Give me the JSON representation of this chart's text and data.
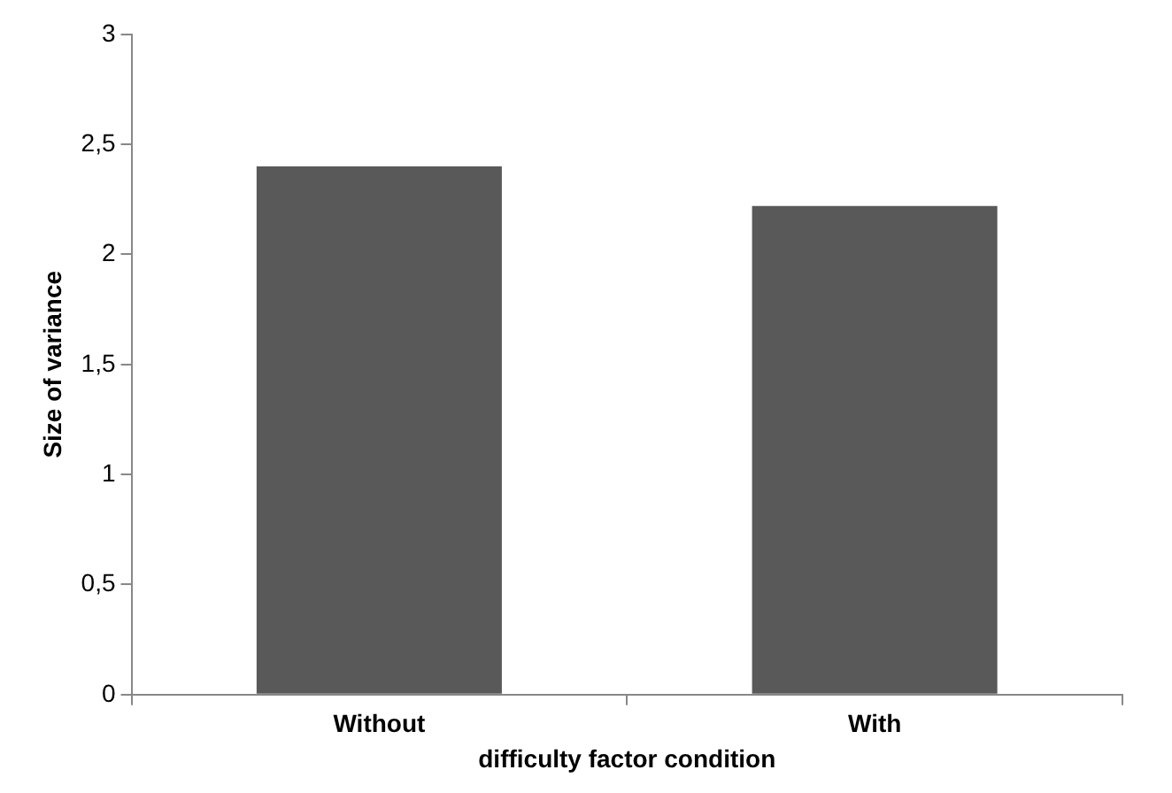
{
  "chart_data": {
    "type": "bar",
    "xlabel": "difficulty factor condition",
    "ylabel": "Size of variance",
    "categories": [
      "Without",
      "With"
    ],
    "values": [
      2.4,
      2.22
    ],
    "color": "#595959",
    "ylim": [
      0,
      3
    ],
    "yticks": [
      0,
      {
        "value": 0.5,
        "label": "0,5"
      },
      1,
      {
        "value": 1.5,
        "label": "1,5"
      },
      2,
      {
        "value": 2.5,
        "label": "2,5"
      },
      3
    ],
    "grid": false,
    "legend": false
  }
}
